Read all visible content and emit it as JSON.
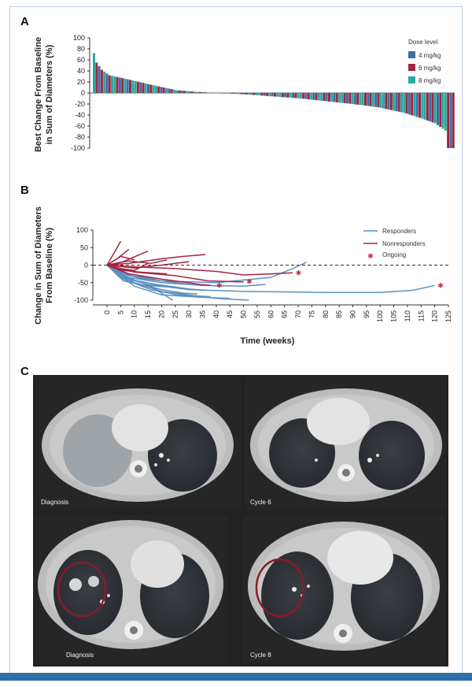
{
  "panels": {
    "a": {
      "letter": "A"
    },
    "b": {
      "letter": "B"
    },
    "c": {
      "letter": "C"
    }
  },
  "scans": {
    "labels": [
      "Diagnosis",
      "Cycle 6",
      "Diagnosis",
      "Cycle 8"
    ],
    "circle_color": "#8b1a2c",
    "background_color": "#2a2a2a"
  },
  "colors": {
    "dose_4": "#3c6fa8",
    "dose_6": "#a3253f",
    "dose_8": "#2aa9a0",
    "responders": "#5b90c0",
    "nonresponders": "#a3253f",
    "ongoing": "#c22e44",
    "frame_bar": "#2e6ea6"
  },
  "chart_data": [
    {
      "type": "bar",
      "ylabel": "Best Change From Baseline in Sum of Diameters (%)",
      "ylim": [
        -100,
        100
      ],
      "yticks": [
        100,
        80,
        60,
        40,
        20,
        0,
        -20,
        -40,
        -60,
        -80,
        -100
      ],
      "legend": {
        "title": "Dose level",
        "placement": "top-right",
        "entries": [
          "4 mg/kg",
          "6 mg/kg",
          "8 mg/kg"
        ]
      },
      "series": [
        {
          "name": "4 mg/kg"
        },
        {
          "name": "6 mg/kg"
        },
        {
          "name": "8 mg/kg"
        }
      ],
      "bar_count": 140,
      "breakpoints": [
        [
          0,
          72
        ],
        [
          1,
          55
        ],
        [
          3,
          42
        ],
        [
          6,
          32
        ],
        [
          12,
          26
        ],
        [
          22,
          15
        ],
        [
          32,
          5
        ],
        [
          40,
          2
        ],
        [
          48,
          0
        ],
        [
          60,
          -3
        ],
        [
          80,
          -10
        ],
        [
          100,
          -20
        ],
        [
          110,
          -26
        ],
        [
          120,
          -36
        ],
        [
          126,
          -45
        ],
        [
          132,
          -55
        ],
        [
          136,
          -68
        ],
        [
          137,
          -100
        ],
        [
          139,
          -100
        ]
      ],
      "dose_pattern": [
        2,
        1,
        0,
        1,
        2,
        0,
        1,
        2
      ]
    },
    {
      "type": "line",
      "xlabel": "Time (weeks)",
      "ylabel": "Change in Sum of Diameters From Baseline (%)",
      "xlim": [
        0,
        125
      ],
      "ylim": [
        -100,
        100
      ],
      "xticks": [
        0,
        5,
        10,
        15,
        20,
        25,
        30,
        35,
        40,
        45,
        50,
        55,
        60,
        65,
        70,
        75,
        80,
        85,
        90,
        95,
        100,
        105,
        110,
        115,
        120,
        125
      ],
      "yticks": [
        100,
        50,
        0,
        -50,
        -100
      ],
      "reference_line": 0,
      "legend": {
        "placement": "top-right",
        "entries": [
          "Responders",
          "Nonresponders",
          "Ongoing"
        ]
      },
      "series": [
        {
          "name": "Responders",
          "group": "responder",
          "points": [
            [
              0,
              0
            ],
            [
              6,
              -35
            ],
            [
              15,
              -55
            ],
            [
              30,
              -70
            ],
            [
              50,
              -75
            ],
            [
              80,
              -78
            ],
            [
              100,
              -78
            ],
            [
              112,
              -72
            ],
            [
              120,
              -58
            ]
          ],
          "ongoing": [
            121,
            -58
          ]
        },
        {
          "name": "Responders",
          "group": "responder",
          "points": [
            [
              0,
              0
            ],
            [
              8,
              -30
            ],
            [
              20,
              -45
            ],
            [
              40,
              -50
            ],
            [
              60,
              -35
            ],
            [
              68,
              -10
            ],
            [
              73,
              8
            ]
          ]
        },
        {
          "name": "Responders",
          "group": "responder",
          "points": [
            [
              0,
              0
            ],
            [
              8,
              -45
            ],
            [
              20,
              -75
            ],
            [
              40,
              -95
            ],
            [
              52,
              -100
            ]
          ]
        },
        {
          "name": "Responders",
          "group": "responder",
          "points": [
            [
              0,
              0
            ],
            [
              10,
              -60
            ],
            [
              20,
              -85
            ],
            [
              35,
              -92
            ],
            [
              45,
              -95
            ]
          ]
        },
        {
          "name": "Responders",
          "group": "responder",
          "points": [
            [
              0,
              0
            ],
            [
              6,
              -40
            ],
            [
              16,
              -70
            ],
            [
              26,
              -85
            ],
            [
              38,
              -90
            ]
          ]
        },
        {
          "name": "Responders",
          "group": "responder",
          "points": [
            [
              0,
              0
            ],
            [
              8,
              -35
            ],
            [
              20,
              -50
            ],
            [
              35,
              -58
            ],
            [
              50,
              -60
            ],
            [
              58,
              -55
            ]
          ]
        },
        {
          "name": "Responders",
          "group": "responder",
          "points": [
            [
              0,
              0
            ],
            [
              10,
              -50
            ],
            [
              20,
              -70
            ],
            [
              28,
              -80
            ],
            [
              33,
              -82
            ]
          ]
        },
        {
          "name": "Responders",
          "group": "responder",
          "points": [
            [
              0,
              0
            ],
            [
              6,
              -30
            ],
            [
              16,
              -60
            ],
            [
              24,
              -100
            ]
          ]
        },
        {
          "name": "Responders",
          "group": "responder",
          "points": [
            [
              0,
              0
            ],
            [
              8,
              -40
            ],
            [
              18,
              -55
            ],
            [
              30,
              -68
            ],
            [
              36,
              -72
            ]
          ]
        },
        {
          "name": "Responders",
          "group": "responder",
          "points": [
            [
              0,
              0
            ],
            [
              5,
              -20
            ],
            [
              12,
              -38
            ],
            [
              20,
              -45
            ],
            [
              28,
              -48
            ]
          ]
        },
        {
          "name": "Responders",
          "group": "responder",
          "points": [
            [
              0,
              0
            ],
            [
              8,
              -25
            ],
            [
              20,
              -45
            ],
            [
              30,
              -55
            ],
            [
              42,
              -60
            ]
          ]
        },
        {
          "name": "Responders",
          "group": "responder",
          "points": [
            [
              0,
              0
            ],
            [
              6,
              -45
            ],
            [
              14,
              -58
            ],
            [
              22,
              -62
            ]
          ]
        },
        {
          "name": "Nonresponders",
          "group": "nonresponder",
          "points": [
            [
              0,
              0
            ],
            [
              3,
              40
            ],
            [
              5,
              68
            ]
          ]
        },
        {
          "name": "Nonresponders",
          "group": "nonresponder",
          "points": [
            [
              0,
              0
            ],
            [
              4,
              20
            ],
            [
              8,
              45
            ]
          ]
        },
        {
          "name": "Nonresponders",
          "group": "nonresponder",
          "points": [
            [
              0,
              0
            ],
            [
              6,
              10
            ],
            [
              12,
              30
            ],
            [
              15,
              40
            ]
          ]
        },
        {
          "name": "Nonresponders",
          "group": "nonresponder",
          "points": [
            [
              0,
              0
            ],
            [
              8,
              5
            ],
            [
              20,
              18
            ],
            [
              28,
              25
            ],
            [
              36,
              30
            ]
          ]
        },
        {
          "name": "Nonresponders",
          "group": "nonresponder",
          "points": [
            [
              0,
              0
            ],
            [
              5,
              -10
            ],
            [
              10,
              -15
            ],
            [
              15,
              5
            ]
          ]
        },
        {
          "name": "Nonresponders",
          "group": "nonresponder",
          "points": [
            [
              0,
              0
            ],
            [
              10,
              -5
            ],
            [
              25,
              -10
            ],
            [
              40,
              -18
            ],
            [
              50,
              -28
            ],
            [
              60,
              -25
            ],
            [
              68,
              -22
            ]
          ],
          "ongoing": [
            69,
            -22
          ]
        },
        {
          "name": "Nonresponders",
          "group": "nonresponder",
          "points": [
            [
              0,
              0
            ],
            [
              10,
              -20
            ],
            [
              25,
              -30
            ],
            [
              37,
              -45
            ],
            [
              50,
              -48
            ]
          ],
          "ongoing": [
            51,
            -47
          ]
        },
        {
          "name": "Nonresponders",
          "group": "nonresponder",
          "points": [
            [
              0,
              0
            ],
            [
              8,
              -25
            ],
            [
              20,
              -40
            ],
            [
              34,
              -55
            ],
            [
              38,
              -58
            ]
          ],
          "ongoing": [
            40,
            -58
          ]
        },
        {
          "name": "Nonresponders",
          "group": "nonresponder",
          "points": [
            [
              0,
              0
            ],
            [
              6,
              -15
            ],
            [
              12,
              -20
            ],
            [
              22,
              -25
            ]
          ]
        },
        {
          "name": "Nonresponders",
          "group": "nonresponder",
          "points": [
            [
              0,
              0
            ],
            [
              8,
              12
            ],
            [
              16,
              5
            ],
            [
              22,
              15
            ]
          ]
        },
        {
          "name": "Nonresponders",
          "group": "nonresponder",
          "points": [
            [
              0,
              0
            ],
            [
              5,
              25
            ],
            [
              10,
              15
            ]
          ]
        },
        {
          "name": "Nonresponders",
          "group": "nonresponder",
          "points": [
            [
              0,
              0
            ],
            [
              10,
              -8
            ],
            [
              20,
              0
            ],
            [
              30,
              10
            ]
          ]
        }
      ]
    }
  ]
}
